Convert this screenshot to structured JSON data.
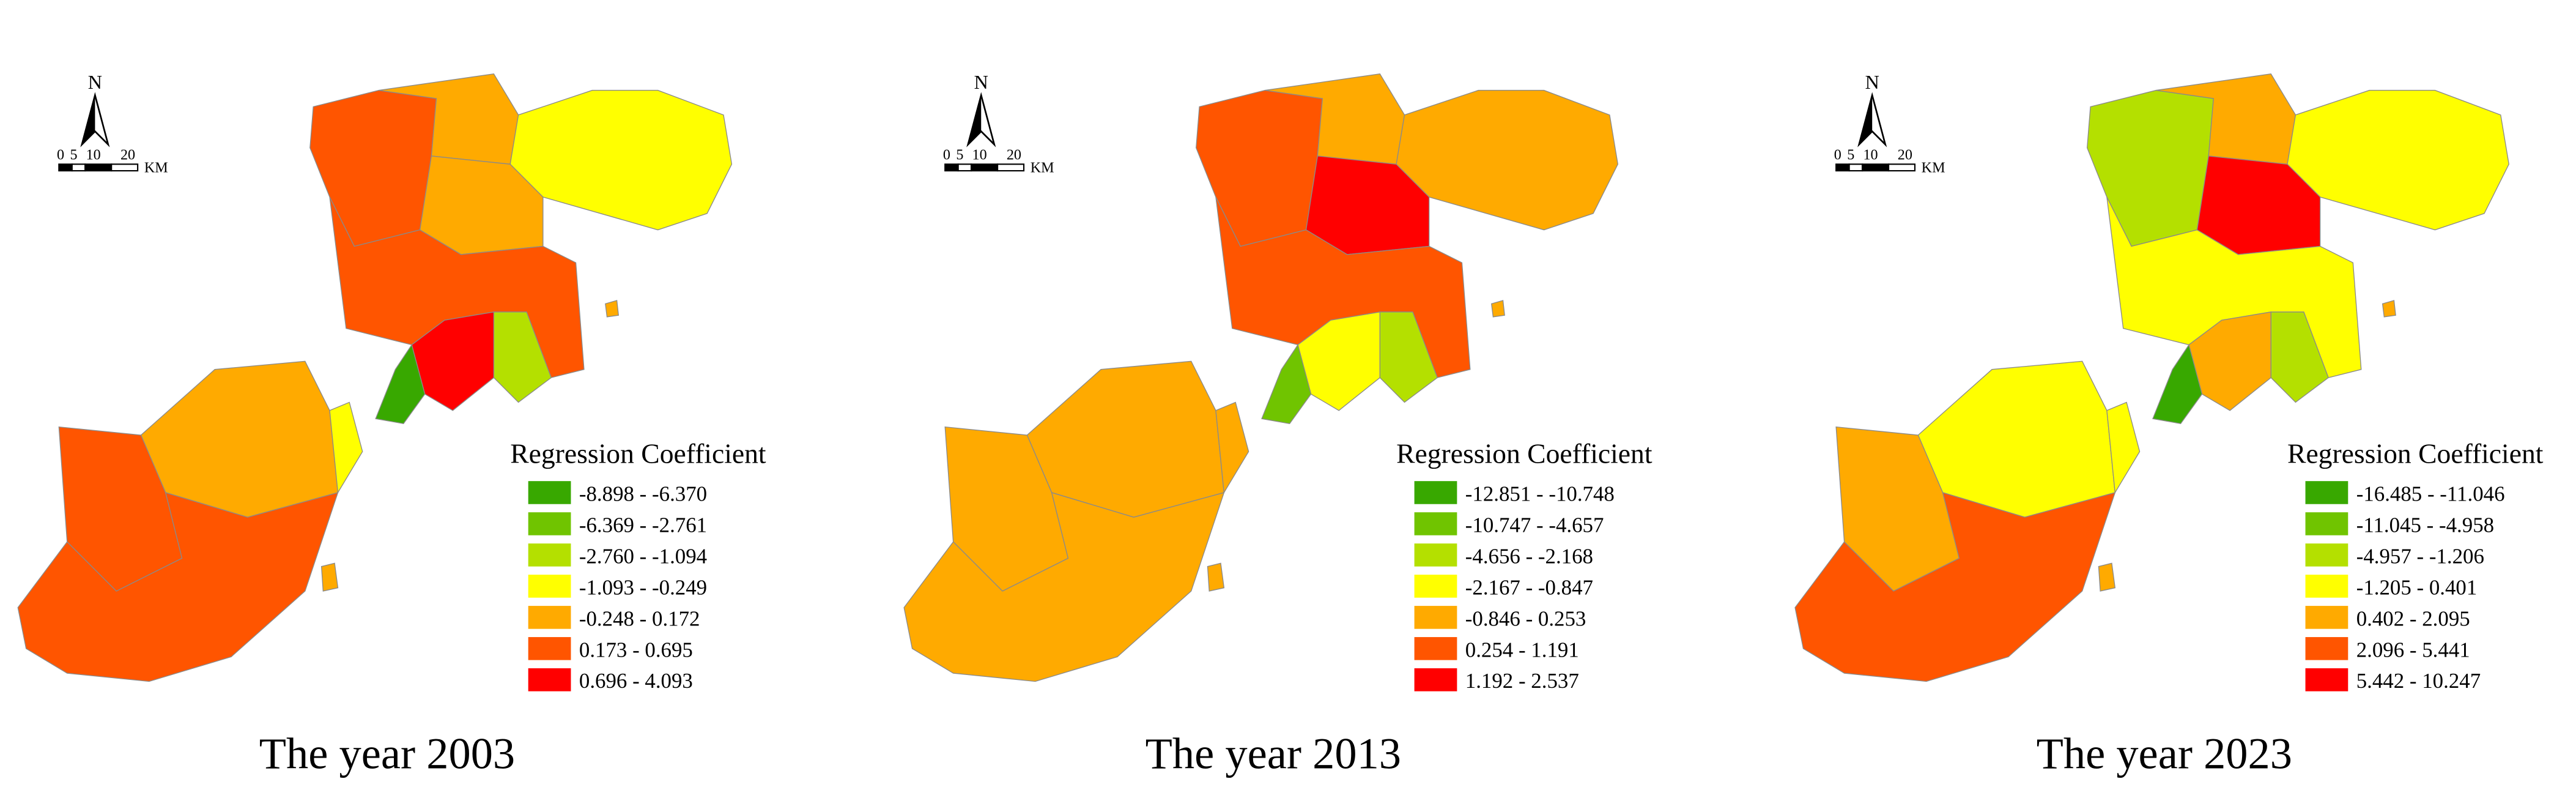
{
  "panels": [
    {
      "title": "The year 2003",
      "north": "N",
      "scale_labels": [
        "0",
        "5",
        "10",
        "20"
      ],
      "scale_unit": "KM",
      "legend_title": "Regression Coefficient",
      "legend": [
        {
          "label": "-8.898 - -6.370",
          "color": "#38a800"
        },
        {
          "label": "-6.369 - -2.761",
          "color": "#70c400"
        },
        {
          "label": "-2.760 - -1.094",
          "color": "#b4e000"
        },
        {
          "label": "-1.093 - -0.249",
          "color": "#ffff00"
        },
        {
          "label": "-0.248 - 0.172",
          "color": "#ffaa00"
        },
        {
          "label": "0.173 - 0.695",
          "color": "#ff5500"
        },
        {
          "label": "0.696 - 4.093",
          "color": "#ff0000"
        }
      ]
    },
    {
      "title": "The year 2013",
      "north": "N",
      "scale_labels": [
        "0",
        "5",
        "10",
        "20"
      ],
      "scale_unit": "KM",
      "legend_title": "Regression Coefficient",
      "legend": [
        {
          "label": "-12.851 - -10.748",
          "color": "#38a800"
        },
        {
          "label": "-10.747 - -4.657",
          "color": "#70c400"
        },
        {
          "label": "-4.656 - -2.168",
          "color": "#b4e000"
        },
        {
          "label": "-2.167 - -0.847",
          "color": "#ffff00"
        },
        {
          "label": "-0.846 - 0.253",
          "color": "#ffaa00"
        },
        {
          "label": "0.254 - 1.191",
          "color": "#ff5500"
        },
        {
          "label": "1.192 - 2.537",
          "color": "#ff0000"
        }
      ]
    },
    {
      "title": "The year 2023",
      "north": "N",
      "scale_labels": [
        "0",
        "5",
        "10",
        "20"
      ],
      "scale_unit": "KM",
      "legend_title": "Regression Coefficient",
      "legend": [
        {
          "label": "-16.485 - -11.046",
          "color": "#38a800"
        },
        {
          "label": "-11.045 - -4.958",
          "color": "#70c400"
        },
        {
          "label": "-4.957 - -1.206",
          "color": "#b4e000"
        },
        {
          "label": "-1.205 - 0.401",
          "color": "#ffff00"
        },
        {
          "label": "0.402 - 2.095",
          "color": "#ffaa00"
        },
        {
          "label": "2.096 - 5.441",
          "color": "#ff5500"
        },
        {
          "label": "5.442 - 10.247",
          "color": "#ff0000"
        }
      ]
    }
  ]
}
